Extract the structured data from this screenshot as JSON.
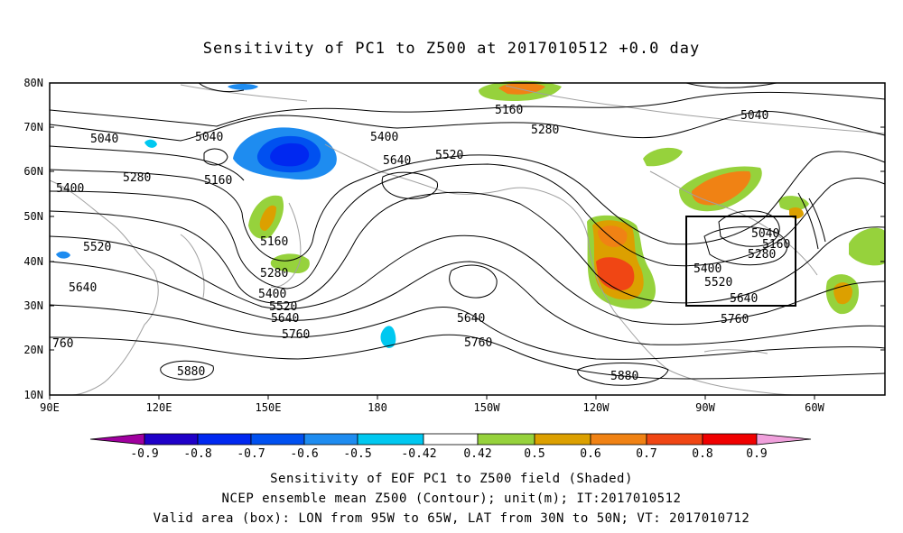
{
  "title": "Sensitivity of PC1 to Z500 at 2017010512 +0.0 day",
  "lat_labels": [
    "80N",
    "70N",
    "60N",
    "50N",
    "40N",
    "30N",
    "20N",
    "10N"
  ],
  "lon_labels": [
    "90E",
    "120E",
    "150E",
    "180",
    "150W",
    "120W",
    "90W",
    "60W"
  ],
  "contour_labels": [
    "5040",
    "5040",
    "5040",
    "5160",
    "5280",
    "5400",
    "5640",
    "5520",
    "5280",
    "5160",
    "5400",
    "5520",
    "5640",
    "5160",
    "5280",
    "5400",
    "5520",
    "5640",
    "5760",
    "5640",
    "5760",
    "5040",
    "5160",
    "5280",
    "5400",
    "5520",
    "5640",
    "5760",
    "760",
    "5880",
    "5880"
  ],
  "colorbar": {
    "labels": [
      "-0.9",
      "-0.8",
      "-0.7",
      "-0.6",
      "-0.5",
      "-0.42",
      "0.42",
      "0.5",
      "0.6",
      "0.7",
      "0.8",
      "0.9"
    ],
    "colors": [
      "#a0009f",
      "#1f00c8",
      "#0028f0",
      "#0050f0",
      "#1e8cf0",
      "#00c8f0",
      "#ffffff",
      "#96d23c",
      "#dca000",
      "#f08214",
      "#f04614",
      "#f00000",
      "#f0a0dc"
    ]
  },
  "box": {
    "lon_from": "95W",
    "lon_to": "65W",
    "lat_from": "30N",
    "lat_to": "50N"
  },
  "footer": {
    "line1": "Sensitivity of EOF PC1 to Z500 field (Shaded)",
    "line2": "NCEP ensemble mean Z500 (Contour); unit(m); IT:2017010512",
    "line3": "Valid area (box): LON from 95W to 65W, LAT from 30N to 50N; VT: 2017010712"
  }
}
